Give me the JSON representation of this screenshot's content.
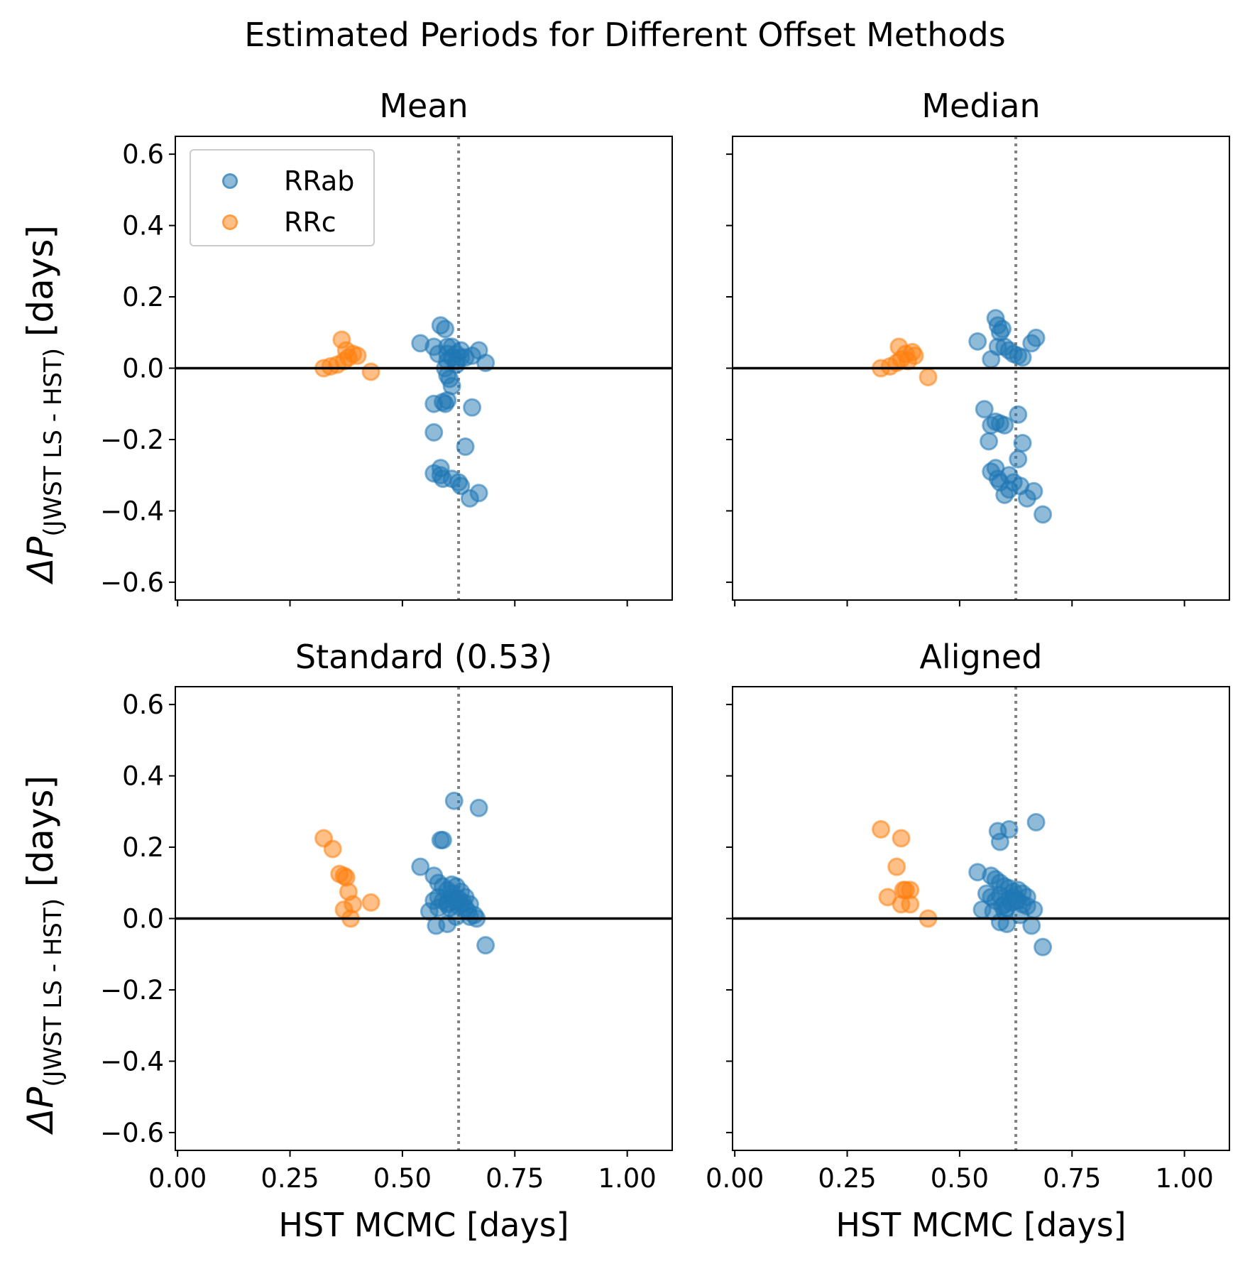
{
  "figure_title": "Estimated Periods for Different Offset Methods",
  "ylabel_main": "ΔP",
  "ylabel_sub": "(JWST LS - HST)",
  "ylabel_unit": " [days]",
  "xlabel": "HST MCMC [days]",
  "legend": {
    "rrab": "RRab",
    "rrc": "RRc"
  },
  "colors": {
    "rrab": "#1f77b4",
    "rrc": "#ff7f0e",
    "zero_line": "#000000",
    "ref_line": "#808080"
  },
  "chart_data": [
    {
      "type": "scatter",
      "title": "Mean",
      "xlim": [
        -0.005,
        1.1
      ],
      "ylim": [
        -0.65,
        0.65
      ],
      "xticks": [
        "0.00",
        "0.25",
        "0.50",
        "0.75",
        "1.00"
      ],
      "yticks": [
        "0.6",
        "0.4",
        "0.2",
        "0.0",
        "−0.2",
        "−0.4",
        "−0.6"
      ],
      "hline": 0.0,
      "vline": 0.625,
      "series": [
        {
          "name": "RRab",
          "x": [
            0.54,
            0.585,
            0.595,
            0.6,
            0.61,
            0.62,
            0.63,
            0.64,
            0.655,
            0.67,
            0.685,
            0.57,
            0.58,
            0.6,
            0.61,
            0.62,
            0.595,
            0.6,
            0.605,
            0.61,
            0.595,
            0.6,
            0.57,
            0.59,
            0.655,
            0.57,
            0.585,
            0.64,
            0.57,
            0.585,
            0.59,
            0.61,
            0.625,
            0.63,
            0.65,
            0.67,
            0.6,
            0.62,
            0.63
          ],
          "y": [
            0.07,
            0.12,
            0.11,
            0.06,
            0.06,
            0.04,
            0.03,
            0.03,
            0.035,
            0.05,
            0.015,
            0.06,
            0.04,
            0.04,
            0.03,
            0.02,
            0.0,
            -0.02,
            -0.03,
            -0.05,
            -0.1,
            -0.09,
            -0.1,
            -0.095,
            -0.11,
            -0.18,
            -0.28,
            -0.22,
            -0.295,
            -0.3,
            -0.31,
            -0.31,
            -0.32,
            -0.33,
            -0.365,
            -0.35,
            0.02,
            0.01,
            0.05
          ]
        },
        {
          "name": "RRc",
          "x": [
            0.325,
            0.34,
            0.355,
            0.365,
            0.37,
            0.375,
            0.38,
            0.39,
            0.4,
            0.43
          ],
          "y": [
            0.0,
            0.005,
            0.01,
            0.08,
            0.02,
            0.05,
            0.03,
            0.04,
            0.035,
            -0.01
          ]
        }
      ]
    },
    {
      "type": "scatter",
      "title": "Median",
      "xlim": [
        -0.005,
        1.1
      ],
      "ylim": [
        -0.65,
        0.65
      ],
      "xticks": [
        "0.00",
        "0.25",
        "0.50",
        "0.75",
        "1.00"
      ],
      "yticks": [
        "0.6",
        "0.4",
        "0.2",
        "0.0",
        "−0.2",
        "−0.4",
        "−0.6"
      ],
      "hline": 0.0,
      "vline": 0.625,
      "series": [
        {
          "name": "RRab",
          "x": [
            0.54,
            0.58,
            0.585,
            0.59,
            0.595,
            0.585,
            0.6,
            0.61,
            0.62,
            0.63,
            0.64,
            0.66,
            0.67,
            0.57,
            0.555,
            0.57,
            0.58,
            0.59,
            0.6,
            0.565,
            0.63,
            0.64,
            0.63,
            0.57,
            0.58,
            0.585,
            0.6,
            0.61,
            0.62,
            0.635,
            0.65,
            0.665,
            0.685,
            0.59,
            0.61
          ],
          "y": [
            0.075,
            0.14,
            0.12,
            0.1,
            0.11,
            0.06,
            0.06,
            0.05,
            0.04,
            0.035,
            0.03,
            0.07,
            0.085,
            0.025,
            -0.115,
            -0.16,
            -0.15,
            -0.155,
            -0.16,
            -0.205,
            -0.13,
            -0.21,
            -0.255,
            -0.29,
            -0.28,
            -0.31,
            -0.355,
            -0.3,
            -0.32,
            -0.33,
            -0.365,
            -0.345,
            -0.41,
            -0.32,
            -0.34
          ]
        },
        {
          "name": "RRc",
          "x": [
            0.325,
            0.345,
            0.36,
            0.365,
            0.37,
            0.38,
            0.385,
            0.395,
            0.4,
            0.43
          ],
          "y": [
            0.0,
            0.005,
            0.015,
            0.06,
            0.025,
            0.04,
            0.02,
            0.045,
            0.035,
            -0.025
          ]
        }
      ]
    },
    {
      "type": "scatter",
      "title": "Standard (0.53)",
      "xlim": [
        -0.005,
        1.1
      ],
      "ylim": [
        -0.65,
        0.65
      ],
      "xticks": [
        "0.00",
        "0.25",
        "0.50",
        "0.75",
        "1.00"
      ],
      "yticks": [
        "0.6",
        "0.4",
        "0.2",
        "0.0",
        "−0.2",
        "−0.4",
        "−0.6"
      ],
      "hline": 0.0,
      "vline": 0.625,
      "series": [
        {
          "name": "RRab",
          "x": [
            0.615,
            0.67,
            0.585,
            0.59,
            0.54,
            0.57,
            0.58,
            0.59,
            0.6,
            0.61,
            0.62,
            0.63,
            0.64,
            0.65,
            0.66,
            0.57,
            0.58,
            0.59,
            0.6,
            0.61,
            0.62,
            0.63,
            0.64,
            0.6,
            0.605,
            0.615,
            0.625,
            0.635,
            0.645,
            0.56,
            0.58,
            0.575,
            0.6,
            0.62,
            0.65,
            0.665,
            0.685,
            0.61,
            0.625
          ],
          "y": [
            0.33,
            0.31,
            0.22,
            0.22,
            0.145,
            0.12,
            0.1,
            0.09,
            0.08,
            0.095,
            0.09,
            0.075,
            0.06,
            0.04,
            0.01,
            0.05,
            0.06,
            0.05,
            0.045,
            0.06,
            0.05,
            0.04,
            0.03,
            0.04,
            0.03,
            0.05,
            0.035,
            0.045,
            0.02,
            0.02,
            0.03,
            -0.02,
            -0.015,
            0.005,
            0.005,
            0.0,
            -0.075,
            0.07,
            0.055
          ]
        },
        {
          "name": "RRc",
          "x": [
            0.325,
            0.345,
            0.36,
            0.37,
            0.375,
            0.38,
            0.37,
            0.39,
            0.385,
            0.43
          ],
          "y": [
            0.225,
            0.195,
            0.125,
            0.12,
            0.115,
            0.075,
            0.025,
            0.04,
            0.0,
            0.045
          ]
        }
      ]
    },
    {
      "type": "scatter",
      "title": "Aligned",
      "xlim": [
        -0.005,
        1.1
      ],
      "ylim": [
        -0.65,
        0.65
      ],
      "xticks": [
        "0.00",
        "0.25",
        "0.50",
        "0.75",
        "1.00"
      ],
      "yticks": [
        "0.6",
        "0.4",
        "0.2",
        "0.0",
        "−0.2",
        "−0.4",
        "−0.6"
      ],
      "hline": 0.0,
      "vline": 0.625,
      "series": [
        {
          "name": "RRab",
          "x": [
            0.67,
            0.585,
            0.61,
            0.59,
            0.54,
            0.57,
            0.58,
            0.59,
            0.6,
            0.61,
            0.62,
            0.63,
            0.64,
            0.65,
            0.56,
            0.57,
            0.58,
            0.59,
            0.6,
            0.61,
            0.62,
            0.63,
            0.64,
            0.65,
            0.665,
            0.55,
            0.6,
            0.605,
            0.615,
            0.625,
            0.635,
            0.59,
            0.605,
            0.66,
            0.685,
            0.575,
            0.595
          ],
          "y": [
            0.27,
            0.245,
            0.25,
            0.215,
            0.13,
            0.12,
            0.11,
            0.1,
            0.09,
            0.085,
            0.075,
            0.08,
            0.07,
            0.06,
            0.07,
            0.06,
            0.05,
            0.065,
            0.04,
            0.055,
            0.06,
            0.05,
            0.04,
            0.035,
            0.025,
            0.025,
            0.02,
            0.03,
            0.045,
            0.05,
            0.01,
            -0.01,
            -0.015,
            -0.02,
            -0.08,
            0.02,
            0.035
          ]
        },
        {
          "name": "RRc",
          "x": [
            0.325,
            0.37,
            0.36,
            0.34,
            0.38,
            0.375,
            0.39,
            0.37,
            0.39,
            0.43
          ],
          "y": [
            0.25,
            0.225,
            0.145,
            0.06,
            0.08,
            0.08,
            0.08,
            0.04,
            0.04,
            0.0
          ]
        }
      ]
    }
  ]
}
